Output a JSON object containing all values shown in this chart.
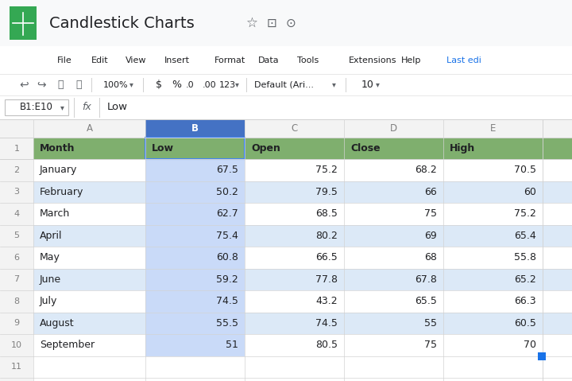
{
  "title": "Candlestick Charts",
  "formula_bar_cell": "B1:E10",
  "formula_bar_content": "Low",
  "menu_items": [
    "File",
    "Edit",
    "View",
    "Insert",
    "Format",
    "Data",
    "Tools",
    "Extensions",
    "Help",
    "Last edi"
  ],
  "columns": [
    "A",
    "B",
    "C",
    "D",
    "E"
  ],
  "headers": [
    "Month",
    "Low",
    "Open",
    "Close",
    "High"
  ],
  "header_bg": "#7faf6e",
  "rows": [
    [
      "January",
      67.5,
      75.2,
      68.2,
      70.5
    ],
    [
      "February",
      50.2,
      79.5,
      66,
      60
    ],
    [
      "March",
      62.7,
      68.5,
      75,
      75.2
    ],
    [
      "April",
      75.4,
      80.2,
      69,
      65.4
    ],
    [
      "May",
      60.8,
      66.5,
      68,
      55.8
    ],
    [
      "June",
      59.2,
      77.8,
      67.8,
      65.2
    ],
    [
      "July",
      74.5,
      43.2,
      65.5,
      66.3
    ],
    [
      "August",
      55.5,
      74.5,
      55,
      60.5
    ],
    [
      "September",
      51,
      80.5,
      75,
      70
    ]
  ],
  "row_nums": [
    1,
    2,
    3,
    4,
    5,
    6,
    7,
    8,
    9,
    10,
    11
  ],
  "data_bg_light": "#dce9f7",
  "data_bg_white": "#ffffff",
  "selected_col_bg": "#c9daf8",
  "selected_header_outline": "#4285f4",
  "grid_color": "#d3d3d3",
  "row_num_color": "#808080",
  "header_bg_gray": "#f3f3f3",
  "last_edit_color": "#1a73e8",
  "icon_green": "#34a853",
  "blue_dot": "#1a73e8"
}
